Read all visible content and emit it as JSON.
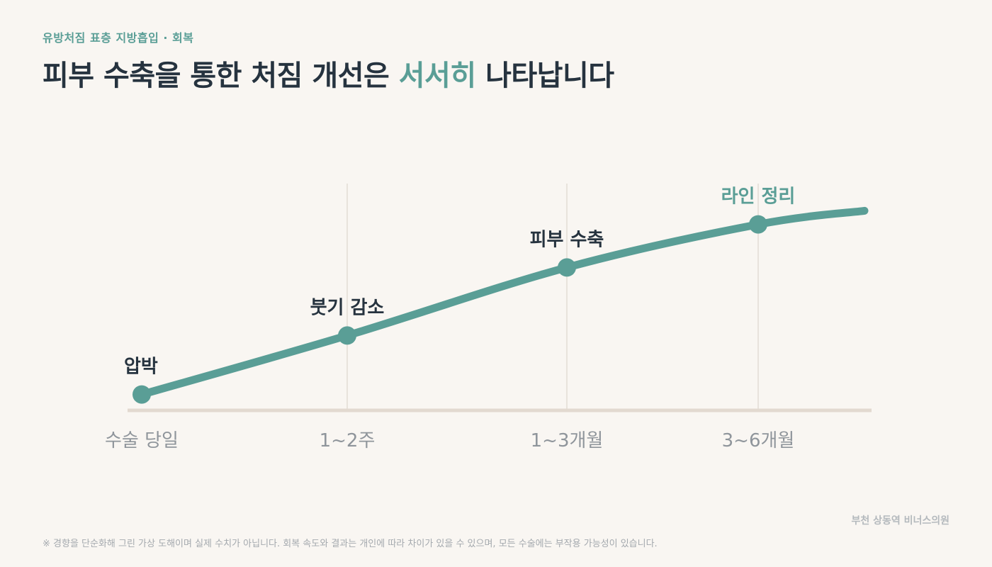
{
  "header": {
    "eyebrow": "유방처짐 표층 지방흡입 · 회복",
    "title_before": "피부 수축을 통한 처짐 개선은 ",
    "title_accent": "서서히",
    "title_after": " 나타납니다"
  },
  "colors": {
    "accent": "#5a9e96",
    "dark_text": "#26333f",
    "axis_text": "#8f959b",
    "baseline": "#e2d9d0",
    "gridline": "#e8e3dc",
    "background": "#f9f6f2"
  },
  "chart_data": {
    "type": "line",
    "x_ticks": [
      "수술 당일",
      "1~2주",
      "1~3개월",
      "3~6개월"
    ],
    "stages": [
      {
        "tick": "수술 당일",
        "label": "압박",
        "level": 0.07,
        "highlight": false
      },
      {
        "tick": "1~2주",
        "label": "붓기 감소",
        "level": 0.33,
        "highlight": false
      },
      {
        "tick": "1~3개월",
        "label": "피부 수축",
        "level": 0.63,
        "highlight": false
      },
      {
        "tick": "3~6개월",
        "label": "라인 정리",
        "level": 0.82,
        "highlight": true
      }
    ],
    "end_level": 0.88,
    "grid": true
  },
  "footer": {
    "clinic": "부천 상동역 비너스의원",
    "disclaimer": "※ 경향을 단순화해 그린 가상 도해이며 실제 수치가 아닙니다. 회복 속도와 결과는 개인에 따라 차이가 있을 수 있으며, 모든 수술에는 부작용 가능성이 있습니다."
  }
}
